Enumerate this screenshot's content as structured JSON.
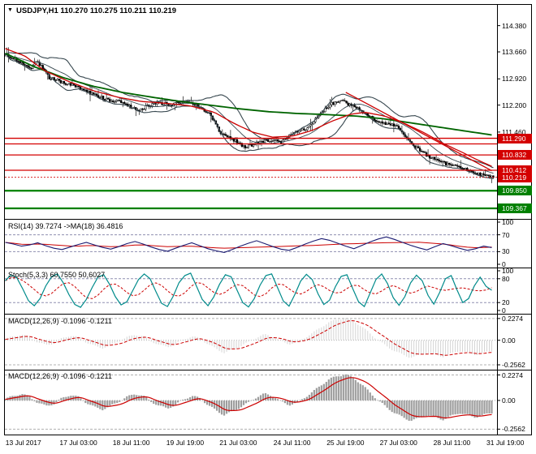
{
  "window": {
    "symbol": "USDJPY",
    "timeframe": "H1",
    "ohlc_text": "110.270 110.275 110.211 110.219"
  },
  "colors": {
    "background": "#ffffff",
    "border": "#000000",
    "candle_up": "#ffffff",
    "candle_down": "#000000",
    "candle_outline": "#111111",
    "bands": "#37474f",
    "ma_red": "#cc0000",
    "ma_green": "#006400",
    "resistance": "#d40000",
    "support": "#008000",
    "tag_red": "#d40000",
    "tag_green": "#008000",
    "rsi_line": "#191970",
    "stoch_line": "#008b8b",
    "signal": "#cc0000",
    "hist_light": "#d4d4d4",
    "hist_dark": "#9e9e9e",
    "level_dash": "#8f8fb0",
    "macd_level_dash": "#b0b0b0"
  },
  "chart_data": [
    {
      "type": "candlestick",
      "panel": "main",
      "title": "USDJPY,H1 110.270 110.275 110.211 110.219",
      "symbol": "USDJPY",
      "timeframe": "H1",
      "current_bar": {
        "open": "110.270",
        "high": "110.275",
        "low": "110.211",
        "close": "110.219"
      },
      "price_range": [
        109.1,
        114.95
      ],
      "y_axis_labels": [
        "114.380",
        "113.660",
        "112.920",
        "112.200",
        "111.460"
      ],
      "close_path": [
        [
          0.0,
          113.58
        ],
        [
          0.02,
          113.48
        ],
        [
          0.05,
          113.2
        ],
        [
          0.065,
          113.42
        ],
        [
          0.09,
          112.95
        ],
        [
          0.12,
          112.82
        ],
        [
          0.14,
          112.75
        ],
        [
          0.17,
          112.55
        ],
        [
          0.21,
          112.35
        ],
        [
          0.24,
          112.28
        ],
        [
          0.27,
          112.05
        ],
        [
          0.31,
          112.28
        ],
        [
          0.34,
          112.2
        ],
        [
          0.37,
          112.32
        ],
        [
          0.4,
          112.15
        ],
        [
          0.42,
          111.95
        ],
        [
          0.44,
          111.45
        ],
        [
          0.465,
          111.28
        ],
        [
          0.49,
          111.05
        ],
        [
          0.515,
          111.15
        ],
        [
          0.54,
          111.25
        ],
        [
          0.565,
          111.18
        ],
        [
          0.59,
          111.42
        ],
        [
          0.615,
          111.55
        ],
        [
          0.64,
          111.85
        ],
        [
          0.655,
          112.1
        ],
        [
          0.68,
          112.33
        ],
        [
          0.7,
          112.25
        ],
        [
          0.73,
          112.05
        ],
        [
          0.75,
          111.85
        ],
        [
          0.77,
          111.72
        ],
        [
          0.8,
          111.62
        ],
        [
          0.82,
          111.35
        ],
        [
          0.84,
          111.05
        ],
        [
          0.86,
          110.85
        ],
        [
          0.89,
          110.65
        ],
        [
          0.92,
          110.52
        ],
        [
          0.945,
          110.42
        ],
        [
          0.97,
          110.3
        ],
        [
          1.0,
          110.22
        ]
      ],
      "ma_red": [
        [
          0.0,
          113.75
        ],
        [
          0.04,
          113.55
        ],
        [
          0.08,
          113.15
        ],
        [
          0.13,
          112.85
        ],
        [
          0.18,
          112.6
        ],
        [
          0.23,
          112.42
        ],
        [
          0.28,
          112.3
        ],
        [
          0.33,
          112.25
        ],
        [
          0.38,
          112.18
        ],
        [
          0.43,
          112.0
        ],
        [
          0.47,
          111.7
        ],
        [
          0.51,
          111.45
        ],
        [
          0.55,
          111.32
        ],
        [
          0.59,
          111.35
        ],
        [
          0.63,
          111.5
        ],
        [
          0.67,
          111.75
        ],
        [
          0.71,
          111.95
        ],
        [
          0.74,
          112.0
        ],
        [
          0.78,
          111.9
        ],
        [
          0.82,
          111.7
        ],
        [
          0.86,
          111.45
        ],
        [
          0.9,
          111.15
        ],
        [
          0.94,
          110.9
        ],
        [
          0.97,
          110.7
        ],
        [
          1.0,
          110.52
        ]
      ],
      "ma_green": [
        [
          0.0,
          113.62
        ],
        [
          0.06,
          113.25
        ],
        [
          0.12,
          112.95
        ],
        [
          0.18,
          112.72
        ],
        [
          0.24,
          112.55
        ],
        [
          0.3,
          112.42
        ],
        [
          0.36,
          112.3
        ],
        [
          0.42,
          112.2
        ],
        [
          0.48,
          112.1
        ],
        [
          0.54,
          112.02
        ],
        [
          0.6,
          111.97
        ],
        [
          0.66,
          111.94
        ],
        [
          0.72,
          111.9
        ],
        [
          0.78,
          111.82
        ],
        [
          0.84,
          111.7
        ],
        [
          0.9,
          111.58
        ],
        [
          0.95,
          111.48
        ],
        [
          1.0,
          111.38
        ]
      ],
      "trendline_red": [
        [
          0.7,
          112.55
        ],
        [
          1.0,
          110.4
        ]
      ],
      "hlines_red": [
        111.29,
        111.135,
        110.832,
        110.412
      ],
      "hlines_green": [
        109.85,
        109.367
      ],
      "current_price": 110.219,
      "price_tags": [
        {
          "text": "111.290",
          "price": 111.29,
          "color": "red"
        },
        {
          "text": "110.832",
          "price": 110.832,
          "color": "red"
        },
        {
          "text": "110.412",
          "price": 110.412,
          "color": "red"
        },
        {
          "text": "110.219",
          "price": 110.219,
          "color": "red"
        },
        {
          "text": "109.850",
          "price": 109.85,
          "color": "green"
        },
        {
          "text": "109.367",
          "price": 109.367,
          "color": "green"
        }
      ]
    },
    {
      "type": "line",
      "panel": "rsi",
      "title": "RSI(14) 39.7274 ->MA(18) 36.4816",
      "axis": [
        "100",
        "70",
        "30",
        "0"
      ],
      "levels": [
        70,
        30
      ],
      "ylim": [
        0,
        100
      ],
      "values": [
        52,
        48,
        43,
        46,
        51,
        44,
        38,
        35,
        41,
        47,
        52,
        46,
        40,
        36,
        42,
        49,
        54,
        48,
        41,
        35,
        31,
        38,
        45,
        51,
        44,
        37,
        32,
        28,
        35,
        43,
        50,
        56,
        49,
        42,
        36,
        33,
        40,
        48,
        55,
        61,
        57,
        50,
        43,
        37,
        45,
        53,
        60,
        65,
        59,
        52,
        45,
        39,
        34,
        42,
        49,
        44,
        38,
        33,
        37,
        43,
        39.7
      ]
    },
    {
      "type": "line",
      "panel": "stoch",
      "title": "Stoch(5,3,3) 60,7550 50,6027",
      "axis": [
        "100",
        "80",
        "20",
        "0"
      ],
      "levels": [
        80,
        20
      ],
      "ylim": [
        0,
        100
      ],
      "values": [
        75,
        90,
        82,
        55,
        25,
        12,
        30,
        62,
        85,
        92,
        70,
        40,
        15,
        8,
        28,
        58,
        84,
        90,
        66,
        35,
        14,
        22,
        50,
        78,
        92,
        80,
        48,
        18,
        10,
        36,
        70,
        88,
        94,
        62,
        28,
        12,
        34,
        66,
        90,
        85,
        52,
        20,
        9,
        30,
        64,
        88,
        92,
        58,
        24,
        11,
        40,
        74,
        91,
        78,
        42,
        15,
        26,
        60,
        86,
        90,
        55,
        22,
        10,
        44,
        78,
        92,
        68,
        32,
        13,
        35,
        70,
        89,
        75,
        38,
        16,
        45,
        80,
        88,
        52,
        20,
        30,
        62,
        84,
        61,
        51
      ]
    },
    {
      "type": "macd",
      "panel": "macd1",
      "title": "MACD(12,26,9) -0.1096 -0.1211",
      "axis": [
        "0.2274",
        "0.00",
        "-0.2562"
      ],
      "ylim": [
        -0.29,
        0.26
      ],
      "values": [
        0.01,
        0.04,
        0.06,
        0.03,
        -0.02,
        -0.05,
        -0.03,
        0.02,
        0.05,
        0.03,
        -0.02,
        -0.06,
        -0.08,
        -0.05,
        -0.01,
        0.03,
        0.06,
        0.04,
        -0.01,
        -0.05,
        -0.07,
        -0.04,
        0.01,
        0.04,
        0.02,
        -0.04,
        -0.09,
        -0.13,
        -0.1,
        -0.06,
        -0.02,
        0.03,
        0.06,
        0.04,
        -0.01,
        -0.04,
        -0.02,
        0.03,
        0.08,
        0.14,
        0.19,
        0.22,
        0.23,
        0.2,
        0.14,
        0.07,
        0.0,
        -0.06,
        -0.11,
        -0.15,
        -0.18,
        -0.16,
        -0.13,
        -0.15,
        -0.17,
        -0.14,
        -0.11,
        -0.13,
        -0.15,
        -0.13,
        -0.11
      ]
    },
    {
      "type": "macd",
      "panel": "macd2",
      "title": "MACD(12,26,9) -0.1096 -0.1211",
      "axis": [
        "0.2274",
        "0.00",
        "-0.2562"
      ],
      "ylim": [
        -0.29,
        0.26
      ],
      "values": [
        0.01,
        0.04,
        0.06,
        0.03,
        -0.02,
        -0.05,
        -0.03,
        0.02,
        0.05,
        0.03,
        -0.02,
        -0.06,
        -0.08,
        -0.05,
        -0.01,
        0.03,
        0.06,
        0.04,
        -0.01,
        -0.05,
        -0.07,
        -0.04,
        0.01,
        0.04,
        0.02,
        -0.04,
        -0.09,
        -0.13,
        -0.1,
        -0.06,
        -0.02,
        0.03,
        0.06,
        0.04,
        -0.01,
        -0.04,
        -0.02,
        0.03,
        0.08,
        0.14,
        0.19,
        0.22,
        0.23,
        0.2,
        0.14,
        0.07,
        0.0,
        -0.06,
        -0.11,
        -0.15,
        -0.18,
        -0.16,
        -0.13,
        -0.15,
        -0.17,
        -0.14,
        -0.11,
        -0.13,
        -0.15,
        -0.13,
        -0.11
      ]
    }
  ],
  "time_axis": {
    "labels": [
      {
        "text": "13 Jul 2017",
        "x": 0.003
      },
      {
        "text": "17 Jul 03:00",
        "x": 0.114
      },
      {
        "text": "18 Jul 11:00",
        "x": 0.223
      },
      {
        "text": "19 Jul 19:00",
        "x": 0.333
      },
      {
        "text": "21 Jul 03:00",
        "x": 0.442
      },
      {
        "text": "24 Jul 11:00",
        "x": 0.553
      },
      {
        "text": "25 Jul 19:00",
        "x": 0.662
      },
      {
        "text": "27 Jul 03:00",
        "x": 0.771
      },
      {
        "text": "28 Jul 11:00",
        "x": 0.881
      },
      {
        "text": "31 Jul 19:00",
        "x": 0.99
      }
    ]
  }
}
